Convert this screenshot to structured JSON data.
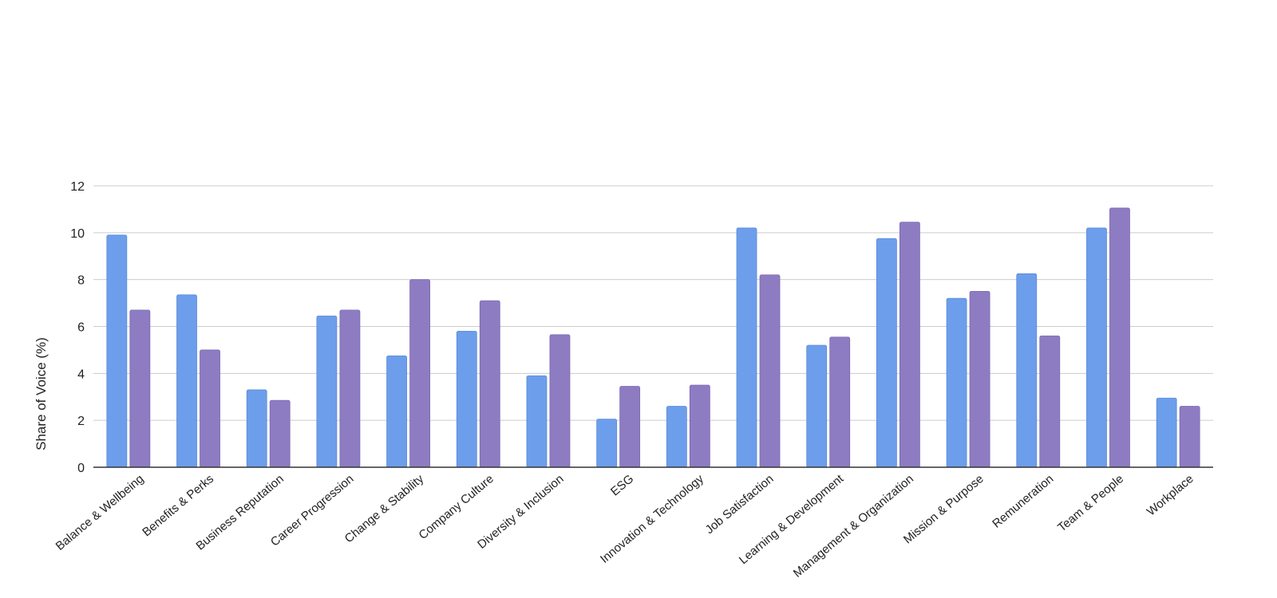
{
  "chart_data": {
    "type": "bar",
    "title": "",
    "xlabel": "",
    "ylabel": "Share of Voice (%)",
    "ylim": [
      0,
      12
    ],
    "yticks": [
      0,
      2,
      4,
      6,
      8,
      10,
      12
    ],
    "grid": true,
    "legend": "none",
    "categories": [
      "Balance & Wellbeing",
      "Benefits & Perks",
      "Business Reputation",
      "Career Progression",
      "Change & Stability",
      "Company Culture",
      "Diversity & Inclusion",
      "ESG",
      "Innovation & Technology",
      "Job Satisfaction",
      "Learning & Development",
      "Management & Organization",
      "Mission & Purpose",
      "Remuneration",
      "Team & People",
      "Workplace"
    ],
    "series": [
      {
        "color": "#6d9eeb",
        "values": [
          9.9,
          7.35,
          3.3,
          6.45,
          4.75,
          5.8,
          3.9,
          2.05,
          2.6,
          10.2,
          5.2,
          9.75,
          7.2,
          8.25,
          10.2,
          2.95
        ]
      },
      {
        "color": "#8e7cc3",
        "values": [
          6.7,
          5.0,
          2.85,
          6.7,
          8.0,
          7.1,
          5.65,
          3.45,
          3.5,
          8.2,
          5.55,
          10.45,
          7.5,
          5.6,
          11.05,
          2.6
        ]
      }
    ]
  }
}
